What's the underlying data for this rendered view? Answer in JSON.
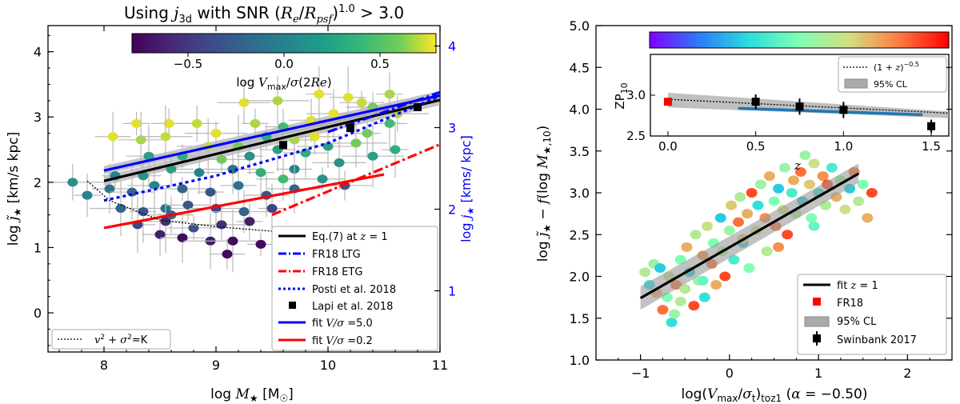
{
  "left_panel": {
    "title_prefix": "Using ",
    "title_j": "j",
    "title_sub": "3d",
    "title_rest": " with SNR (R",
    "title_snr": "Using j3d with SNR (Re/Rpsf)^1.0 > 3.0",
    "xlabel": "log M★ [M☉]",
    "ylabel": "log j̃★ [km/s kpc]",
    "right_ylabel": "log j★ [kms/ kpc]",
    "colorbar_label": "log Vmax/σ(2Re)",
    "bottom_left_note": "v² + σ² =K",
    "colors": {
      "axis": "#000000",
      "right_axis": "#0000ff"
    }
  },
  "right_panel": {
    "xlabel": "log(Vmax/σt)toz1  (α = −0.50)",
    "ylabel": "log j̃★ − f(log M★,10)",
    "z_label": "z",
    "inset_ylabel": "ZP10",
    "colors": {
      "fit": "#000000",
      "fr18": "#ff0000",
      "inset_fit": "#1f77b4"
    }
  },
  "chart_data": [
    {
      "type": "scatter",
      "title": "Using j3d with SNR (Re/Rpsf)^1.0 > 3.0",
      "xlabel": "log M★ [M☉]",
      "ylabel": "log j̃★ [km/s kpc]",
      "right_ylabel": "log j★ [kms/ kpc]",
      "xlim": [
        7.5,
        11.0
      ],
      "ylim": [
        -0.6,
        4.4
      ],
      "xticks": [
        "8",
        "9",
        "10",
        "11"
      ],
      "yticks": [
        "0",
        "1",
        "2",
        "3",
        "4"
      ],
      "right_yticks": [
        "1",
        "2",
        "3",
        "4"
      ],
      "right_ylim": [
        0.25,
        4.25
      ],
      "colorbar": {
        "label": "log Vmax/σ(2Re)",
        "range": [
          -0.75,
          0.75
        ],
        "ticks": [
          "−0.5",
          "0.0",
          "0.5"
        ]
      },
      "lines": [
        {
          "name": "Eq.(7) at z = 1",
          "style": "solid",
          "color": "#000000",
          "x": [
            8.0,
            11.0
          ],
          "y": [
            2.02,
            3.26
          ]
        },
        {
          "name": "FR18 LTG",
          "style": "dashdot",
          "color": "#0000ff",
          "x": [
            10.0,
            11.0
          ],
          "y": [
            2.77,
            3.38
          ]
        },
        {
          "name": "FR18 ETG",
          "style": "dashdot",
          "color": "#ff0000",
          "x": [
            9.5,
            11.0
          ],
          "y": [
            1.5,
            2.58
          ]
        },
        {
          "name": "Posti et al. 2018",
          "style": "dotted",
          "color": "#0000ff",
          "x": [
            8.0,
            9.0,
            10.0,
            11.0
          ],
          "y": [
            1.72,
            2.1,
            2.6,
            3.32
          ]
        },
        {
          "name": "fit V/σ =5.0",
          "style": "solid",
          "color": "#0000ff",
          "x": [
            8.0,
            11.0
          ],
          "y": [
            2.18,
            3.33
          ]
        },
        {
          "name": "fit V/σ =0.2",
          "style": "solid",
          "color": "#ff0000",
          "x": [
            8.0,
            10.5
          ],
          "y": [
            1.3,
            2.12
          ]
        },
        {
          "name": "v² + σ² =K",
          "style": "dotted",
          "color": "#000000",
          "x": [
            7.85,
            8.05,
            8.5,
            9.0,
            9.5
          ],
          "y": [
            2.02,
            1.72,
            1.42,
            1.32,
            1.25
          ]
        }
      ],
      "lapi_points": {
        "name": "Lapi et al. 2018",
        "x": [
          9.6,
          10.2,
          10.8
        ],
        "y": [
          2.57,
          2.83,
          3.15
        ]
      },
      "legend_entries": [
        "Eq.(7) at z = 1",
        "FR18 LTG",
        "FR18 ETG",
        "Posti et al. 2018",
        "Lapi et al. 2018",
        "fit V/σ =5.0",
        "fit V/σ =0.2"
      ],
      "legend_position": "lower-right",
      "points": [
        {
          "x": 8.29,
          "y": 2.9,
          "c": 0.7
        },
        {
          "x": 8.58,
          "y": 2.9,
          "c": 0.7
        },
        {
          "x": 8.83,
          "y": 2.9,
          "c": 0.65
        },
        {
          "x": 9.25,
          "y": 3.22,
          "c": 0.7
        },
        {
          "x": 9.55,
          "y": 3.25,
          "c": 0.6
        },
        {
          "x": 9.92,
          "y": 3.35,
          "c": 0.7
        },
        {
          "x": 10.18,
          "y": 3.3,
          "c": 0.7
        },
        {
          "x": 10.3,
          "y": 3.22,
          "c": 0.65
        },
        {
          "x": 10.4,
          "y": 3.15,
          "c": 0.5
        },
        {
          "x": 10.62,
          "y": 3.05,
          "c": 0.6
        },
        {
          "x": 10.55,
          "y": 3.35,
          "c": 0.6
        },
        {
          "x": 8.08,
          "y": 2.7,
          "c": 0.7
        },
        {
          "x": 8.33,
          "y": 2.65,
          "c": 0.6
        },
        {
          "x": 8.55,
          "y": 2.7,
          "c": 0.65
        },
        {
          "x": 9.0,
          "y": 2.75,
          "c": 0.7
        },
        {
          "x": 9.35,
          "y": 2.9,
          "c": 0.6
        },
        {
          "x": 9.6,
          "y": 2.85,
          "c": 0.4
        },
        {
          "x": 9.85,
          "y": 2.95,
          "c": 0.7
        },
        {
          "x": 10.05,
          "y": 3.05,
          "c": 0.7
        },
        {
          "x": 8.93,
          "y": 2.55,
          "c": 0.65
        },
        {
          "x": 9.2,
          "y": 2.55,
          "c": 0.5
        },
        {
          "x": 9.45,
          "y": 2.7,
          "c": 0.3
        },
        {
          "x": 9.7,
          "y": 2.65,
          "c": 0.6
        },
        {
          "x": 9.88,
          "y": 2.7,
          "c": 0.7
        },
        {
          "x": 10.0,
          "y": 2.55,
          "c": 0.2
        },
        {
          "x": 10.35,
          "y": 2.75,
          "c": 0.5
        },
        {
          "x": 10.55,
          "y": 2.9,
          "c": 0.4
        },
        {
          "x": 8.4,
          "y": 2.4,
          "c": 0.2
        },
        {
          "x": 8.7,
          "y": 2.4,
          "c": 0.3
        },
        {
          "x": 9.05,
          "y": 2.35,
          "c": 0.5
        },
        {
          "x": 9.3,
          "y": 2.4,
          "c": 0.1
        },
        {
          "x": 9.55,
          "y": 2.5,
          "c": 0.2
        },
        {
          "x": 9.8,
          "y": 2.45,
          "c": 0.3
        },
        {
          "x": 10.1,
          "y": 2.3,
          "c": 0.1
        },
        {
          "x": 10.4,
          "y": 2.4,
          "c": 0.2
        },
        {
          "x": 8.1,
          "y": 2.1,
          "c": 0.0
        },
        {
          "x": 8.35,
          "y": 2.1,
          "c": 0.1
        },
        {
          "x": 8.6,
          "y": 2.2,
          "c": 0.2
        },
        {
          "x": 8.85,
          "y": 2.15,
          "c": 0.0
        },
        {
          "x": 9.15,
          "y": 2.2,
          "c": -0.1
        },
        {
          "x": 9.4,
          "y": 2.15,
          "c": 0.3
        },
        {
          "x": 9.7,
          "y": 2.2,
          "c": 0.0
        },
        {
          "x": 9.95,
          "y": 2.05,
          "c": 0.1
        },
        {
          "x": 10.15,
          "y": 1.95,
          "c": -0.3
        },
        {
          "x": 7.72,
          "y": 2.0,
          "c": 0.1
        },
        {
          "x": 7.85,
          "y": 1.8,
          "c": 0.0
        },
        {
          "x": 8.05,
          "y": 1.9,
          "c": -0.1
        },
        {
          "x": 8.25,
          "y": 1.85,
          "c": -0.2
        },
        {
          "x": 8.45,
          "y": 1.95,
          "c": 0.0
        },
        {
          "x": 8.7,
          "y": 1.9,
          "c": -0.2
        },
        {
          "x": 8.95,
          "y": 1.85,
          "c": -0.3
        },
        {
          "x": 9.2,
          "y": 1.95,
          "c": -0.1
        },
        {
          "x": 9.45,
          "y": 1.8,
          "c": -0.3
        },
        {
          "x": 9.7,
          "y": 1.9,
          "c": -0.2
        },
        {
          "x": 8.15,
          "y": 1.6,
          "c": -0.2
        },
        {
          "x": 8.35,
          "y": 1.55,
          "c": -0.3
        },
        {
          "x": 8.55,
          "y": 1.6,
          "c": -0.1
        },
        {
          "x": 8.75,
          "y": 1.65,
          "c": -0.3
        },
        {
          "x": 9.0,
          "y": 1.6,
          "c": -0.4
        },
        {
          "x": 9.25,
          "y": 1.55,
          "c": -0.2
        },
        {
          "x": 9.5,
          "y": 1.6,
          "c": -0.4
        },
        {
          "x": 8.3,
          "y": 1.35,
          "c": -0.4
        },
        {
          "x": 8.55,
          "y": 1.4,
          "c": -0.5
        },
        {
          "x": 8.8,
          "y": 1.3,
          "c": -0.3
        },
        {
          "x": 9.05,
          "y": 1.35,
          "c": -0.5
        },
        {
          "x": 9.3,
          "y": 1.4,
          "c": -0.6
        },
        {
          "x": 8.5,
          "y": 1.2,
          "c": -0.6
        },
        {
          "x": 8.7,
          "y": 1.15,
          "c": -0.7
        },
        {
          "x": 8.95,
          "y": 1.1,
          "c": -0.6
        },
        {
          "x": 9.15,
          "y": 1.1,
          "c": -0.7
        },
        {
          "x": 9.4,
          "y": 1.05,
          "c": -0.7
        },
        {
          "x": 9.1,
          "y": 0.9,
          "c": -0.7
        },
        {
          "x": 8.6,
          "y": 1.5,
          "c": -0.2
        },
        {
          "x": 9.6,
          "y": 2.05,
          "c": 0.4
        },
        {
          "x": 10.25,
          "y": 2.6,
          "c": 0.5
        },
        {
          "x": 10.6,
          "y": 2.5,
          "c": 0.3
        }
      ]
    },
    {
      "type": "scatter",
      "xlabel": "log(Vmax/σt)toz1  (α = −0.50)",
      "ylabel": "log j̃★ − f(log M★,10)",
      "xlim": [
        -1.5,
        2.5
      ],
      "ylim": [
        1.0,
        5.0
      ],
      "xticks": [
        "−1",
        "0",
        "1",
        "2"
      ],
      "yticks": [
        "1.0",
        "1.5",
        "2.0",
        "2.5",
        "3.0",
        "3.5",
        "4.0",
        "4.5",
        "5.0"
      ],
      "colorbar": {
        "label": "z",
        "orientation": "horizontal",
        "colormap": "rainbow"
      },
      "fit_line": {
        "name": "fit z = 1",
        "x": [
          -1.0,
          1.45
        ],
        "y": [
          1.74,
          3.23
        ]
      },
      "fit_band": {
        "name": "95% CL",
        "x": [
          -1.0,
          1.45
        ],
        "y_low": [
          1.6,
          3.12
        ],
        "y_high": [
          1.88,
          3.35
        ]
      },
      "legend_entries": [
        "fit z = 1",
        "FR18",
        "95% CL",
        "Swinbank 2017"
      ],
      "legend_position": "lower-right",
      "points": [
        {
          "x": -0.95,
          "y": 2.05,
          "c": 0.6
        },
        {
          "x": -0.9,
          "y": 1.9,
          "c": 0.35
        },
        {
          "x": -0.85,
          "y": 2.15,
          "c": 0.55
        },
        {
          "x": -0.82,
          "y": 1.8,
          "c": 0.75
        },
        {
          "x": -0.78,
          "y": 2.1,
          "c": 0.3
        },
        {
          "x": -0.75,
          "y": 1.6,
          "c": 0.85
        },
        {
          "x": -0.7,
          "y": 1.75,
          "c": 0.5
        },
        {
          "x": -0.68,
          "y": 2.0,
          "c": 0.65
        },
        {
          "x": -0.65,
          "y": 1.45,
          "c": 0.35
        },
        {
          "x": -0.62,
          "y": 1.55,
          "c": 0.55
        },
        {
          "x": -0.6,
          "y": 1.9,
          "c": 0.85
        },
        {
          "x": -0.55,
          "y": 2.2,
          "c": 0.5
        },
        {
          "x": -0.5,
          "y": 1.85,
          "c": 0.6
        },
        {
          "x": -0.48,
          "y": 2.35,
          "c": 0.75
        },
        {
          "x": -0.45,
          "y": 2.05,
          "c": 0.3
        },
        {
          "x": -0.4,
          "y": 1.65,
          "c": 0.9
        },
        {
          "x": -0.38,
          "y": 2.5,
          "c": 0.6
        },
        {
          "x": -0.35,
          "y": 1.95,
          "c": 0.55
        },
        {
          "x": -0.3,
          "y": 2.25,
          "c": 0.8
        },
        {
          "x": -0.28,
          "y": 1.75,
          "c": 0.35
        },
        {
          "x": -0.25,
          "y": 2.6,
          "c": 0.65
        },
        {
          "x": -0.2,
          "y": 2.15,
          "c": 0.85
        },
        {
          "x": -0.18,
          "y": 2.4,
          "c": 0.5
        },
        {
          "x": -0.15,
          "y": 1.9,
          "c": 0.75
        },
        {
          "x": -0.1,
          "y": 2.7,
          "c": 0.3
        },
        {
          "x": -0.08,
          "y": 2.3,
          "c": 0.6
        },
        {
          "x": -0.05,
          "y": 2.0,
          "c": 0.9
        },
        {
          "x": 0.0,
          "y": 2.55,
          "c": 0.55
        },
        {
          "x": 0.02,
          "y": 2.85,
          "c": 0.7
        },
        {
          "x": 0.05,
          "y": 2.2,
          "c": 0.4
        },
        {
          "x": 0.1,
          "y": 2.65,
          "c": 0.85
        },
        {
          "x": 0.12,
          "y": 2.95,
          "c": 0.6
        },
        {
          "x": 0.15,
          "y": 2.4,
          "c": 0.3
        },
        {
          "x": 0.2,
          "y": 2.75,
          "c": 0.75
        },
        {
          "x": 0.22,
          "y": 2.1,
          "c": 0.5
        },
        {
          "x": 0.25,
          "y": 3.0,
          "c": 0.9
        },
        {
          "x": 0.3,
          "y": 2.55,
          "c": 0.65
        },
        {
          "x": 0.32,
          "y": 2.85,
          "c": 0.35
        },
        {
          "x": 0.35,
          "y": 3.1,
          "c": 0.55
        },
        {
          "x": 0.4,
          "y": 2.7,
          "c": 0.8
        },
        {
          "x": 0.42,
          "y": 2.3,
          "c": 0.6
        },
        {
          "x": 0.45,
          "y": 3.2,
          "c": 0.75
        },
        {
          "x": 0.5,
          "y": 2.9,
          "c": 0.5
        },
        {
          "x": 0.52,
          "y": 2.6,
          "c": 0.85
        },
        {
          "x": 0.55,
          "y": 3.05,
          "c": 0.3
        },
        {
          "x": 0.6,
          "y": 2.8,
          "c": 0.65
        },
        {
          "x": 0.62,
          "y": 3.3,
          "c": 0.55
        },
        {
          "x": 0.65,
          "y": 2.5,
          "c": 0.9
        },
        {
          "x": 0.7,
          "y": 3.0,
          "c": 0.4
        },
        {
          "x": 0.72,
          "y": 3.15,
          "c": 0.75
        },
        {
          "x": 0.75,
          "y": 2.75,
          "c": 0.6
        },
        {
          "x": 0.8,
          "y": 3.25,
          "c": 0.85
        },
        {
          "x": 0.82,
          "y": 2.9,
          "c": 0.3
        },
        {
          "x": 0.85,
          "y": 3.45,
          "c": 0.55
        },
        {
          "x": 0.9,
          "y": 3.1,
          "c": 0.7
        },
        {
          "x": 0.92,
          "y": 2.7,
          "c": 0.5
        },
        {
          "x": 0.95,
          "y": 3.35,
          "c": 0.65
        },
        {
          "x": 1.0,
          "y": 3.0,
          "c": 0.35
        },
        {
          "x": 1.05,
          "y": 3.2,
          "c": 0.8
        },
        {
          "x": 1.08,
          "y": 2.85,
          "c": 0.6
        },
        {
          "x": 1.1,
          "y": 3.1,
          "c": 0.9
        },
        {
          "x": 1.15,
          "y": 3.3,
          "c": 0.4
        },
        {
          "x": 1.2,
          "y": 2.95,
          "c": 0.75
        },
        {
          "x": 1.25,
          "y": 3.15,
          "c": 0.55
        },
        {
          "x": 1.3,
          "y": 2.8,
          "c": 0.65
        },
        {
          "x": 1.35,
          "y": 3.05,
          "c": 0.3
        },
        {
          "x": 1.4,
          "y": 3.25,
          "c": 0.85
        },
        {
          "x": 1.45,
          "y": 2.9,
          "c": 0.6
        },
        {
          "x": 1.5,
          "y": 3.1,
          "c": 0.5
        },
        {
          "x": 1.55,
          "y": 2.7,
          "c": 0.75
        },
        {
          "x": 1.6,
          "y": 3.0,
          "c": 0.9
        },
        {
          "x": -0.3,
          "y": 1.95,
          "c": 0.45
        },
        {
          "x": 0.15,
          "y": 2.45,
          "c": 0.7
        },
        {
          "x": 0.55,
          "y": 2.35,
          "c": 0.8
        },
        {
          "x": -0.55,
          "y": 1.7,
          "c": 0.6
        },
        {
          "x": 0.95,
          "y": 2.6,
          "c": 0.45
        }
      ],
      "inset": {
        "ylabel": "ZP10",
        "xlim": [
          -0.1,
          1.6
        ],
        "ylim": [
          2.5,
          3.5
        ],
        "xticks": [
          "0.0",
          "0.5",
          "1.0",
          "1.5"
        ],
        "yticks": [
          "2.5",
          "3.0"
        ],
        "legend_entries": [
          "(1 + z)^−0.5",
          "95% CL"
        ],
        "legend_position": "top-right",
        "fr18_point": {
          "x": 0.0,
          "y": 2.92
        },
        "swinbank_points": [
          {
            "x": 0.5,
            "y": 2.92,
            "err": 0.09
          },
          {
            "x": 0.75,
            "y": 2.86,
            "err": 0.1
          },
          {
            "x": 1.0,
            "y": 2.82,
            "err": 0.1
          },
          {
            "x": 1.5,
            "y": 2.62,
            "err": 0.08
          }
        ],
        "dotted_curve_label": "(1 + z)^−0.5",
        "dotted_curve": {
          "x": [
            0.0,
            1.6
          ],
          "y": [
            2.95,
            2.78
          ]
        },
        "fit_line": {
          "x": [
            0.4,
            1.45
          ],
          "y": [
            2.84,
            2.76
          ]
        },
        "band": {
          "x": [
            0.0,
            1.6
          ],
          "y_low": [
            2.85,
            2.72
          ],
          "y_high": [
            3.03,
            2.8
          ]
        }
      }
    }
  ]
}
